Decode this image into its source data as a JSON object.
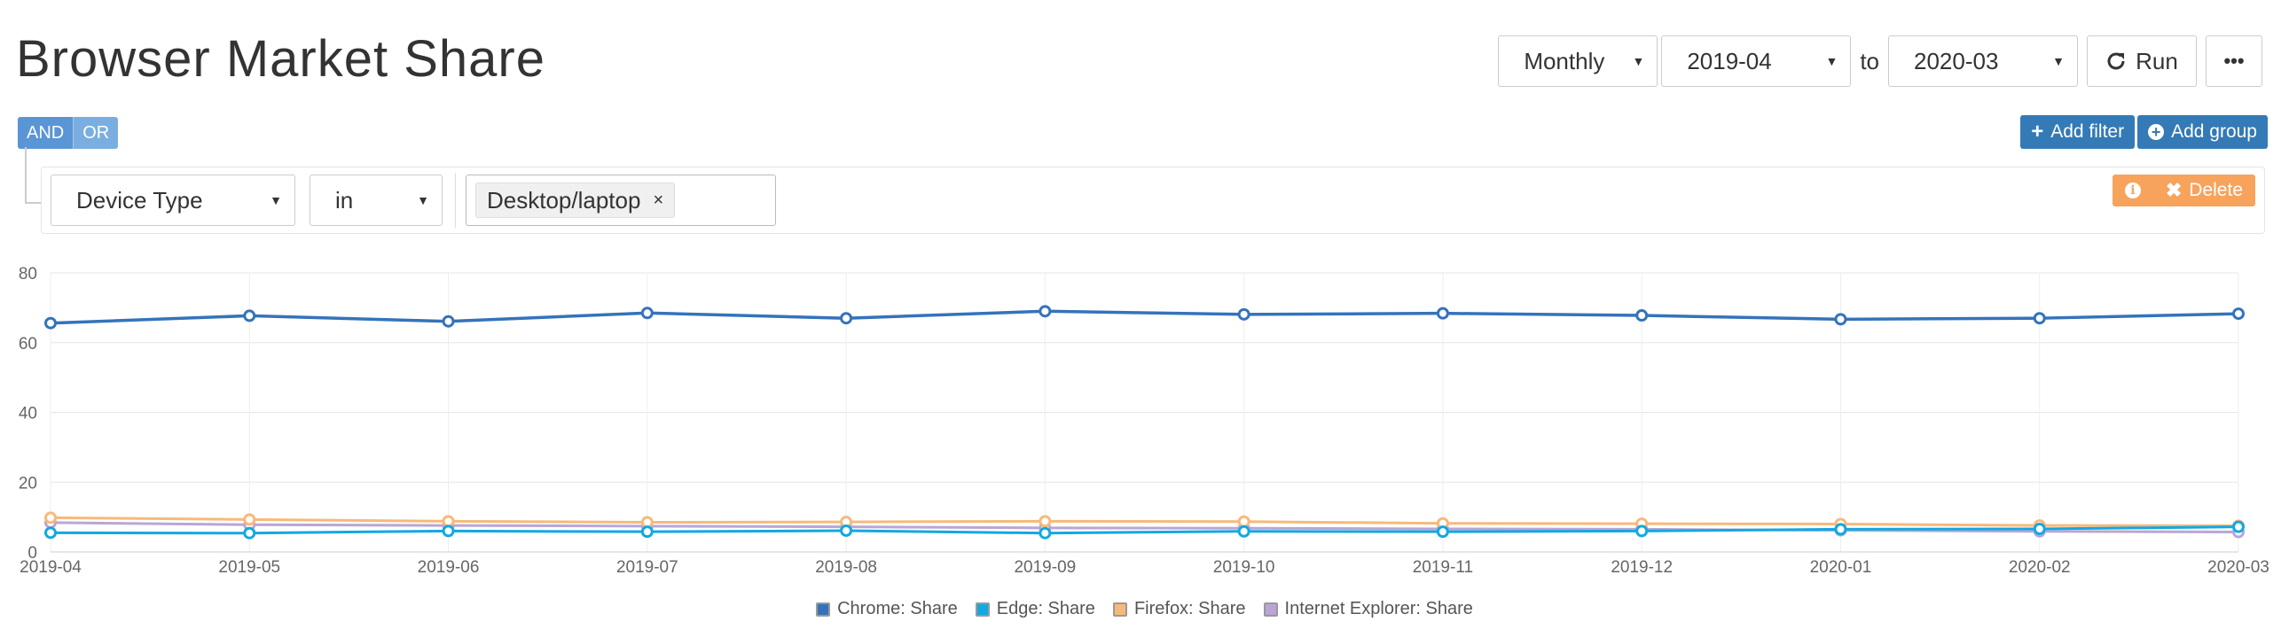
{
  "header": {
    "title": "Browser Market Share"
  },
  "toolbar": {
    "period": "Monthly",
    "from": "2019-04",
    "to_label": "to",
    "to": "2020-03",
    "run_label": "Run",
    "more_icon": "ellipsis-icon"
  },
  "logic": {
    "and_label": "AND",
    "or_label": "OR"
  },
  "actions": {
    "add_filter_label": "Add filter",
    "add_group_label": "Add group"
  },
  "rule": {
    "field": "Device Type",
    "operator": "in",
    "value_tag": "Desktop/laptop",
    "remove_tag": "×",
    "delete_label": "Delete"
  },
  "colors": {
    "primary": "#337ab7",
    "warning": "#f7a35c",
    "chrome": "#3473bb",
    "edge": "#12a8e2",
    "firefox": "#f7b97a",
    "ie": "#b9a6d6"
  },
  "chart_data": {
    "type": "line",
    "categories": [
      "2019-04",
      "2019-05",
      "2019-06",
      "2019-07",
      "2019-08",
      "2019-09",
      "2019-10",
      "2019-11",
      "2019-12",
      "2020-01",
      "2020-02",
      "2020-03"
    ],
    "ylim": [
      0,
      80
    ],
    "yticks": [
      0,
      20,
      40,
      60,
      80
    ],
    "grid": true,
    "legend_position": "bottom",
    "series": [
      {
        "name": "Chrome: Share",
        "color": "#3473bb",
        "values": [
          65.6,
          67.7,
          66.1,
          68.5,
          67.0,
          69.0,
          68.1,
          68.4,
          67.8,
          66.7,
          67.0,
          68.3
        ]
      },
      {
        "name": "Edge: Share",
        "color": "#12a8e2",
        "values": [
          5.5,
          5.4,
          6.0,
          5.8,
          6.1,
          5.4,
          5.9,
          5.8,
          6.0,
          6.5,
          6.6,
          7.2
        ]
      },
      {
        "name": "Firefox: Share",
        "color": "#f7b97a",
        "values": [
          9.8,
          9.3,
          8.8,
          8.5,
          8.6,
          8.8,
          8.7,
          8.2,
          8.1,
          8.0,
          7.6,
          7.5
        ]
      },
      {
        "name": "Internet Explorer: Share",
        "color": "#b9a6d6",
        "values": [
          8.4,
          7.8,
          7.6,
          7.4,
          7.2,
          6.9,
          6.8,
          6.6,
          6.5,
          6.2,
          5.9,
          5.7
        ]
      }
    ]
  }
}
